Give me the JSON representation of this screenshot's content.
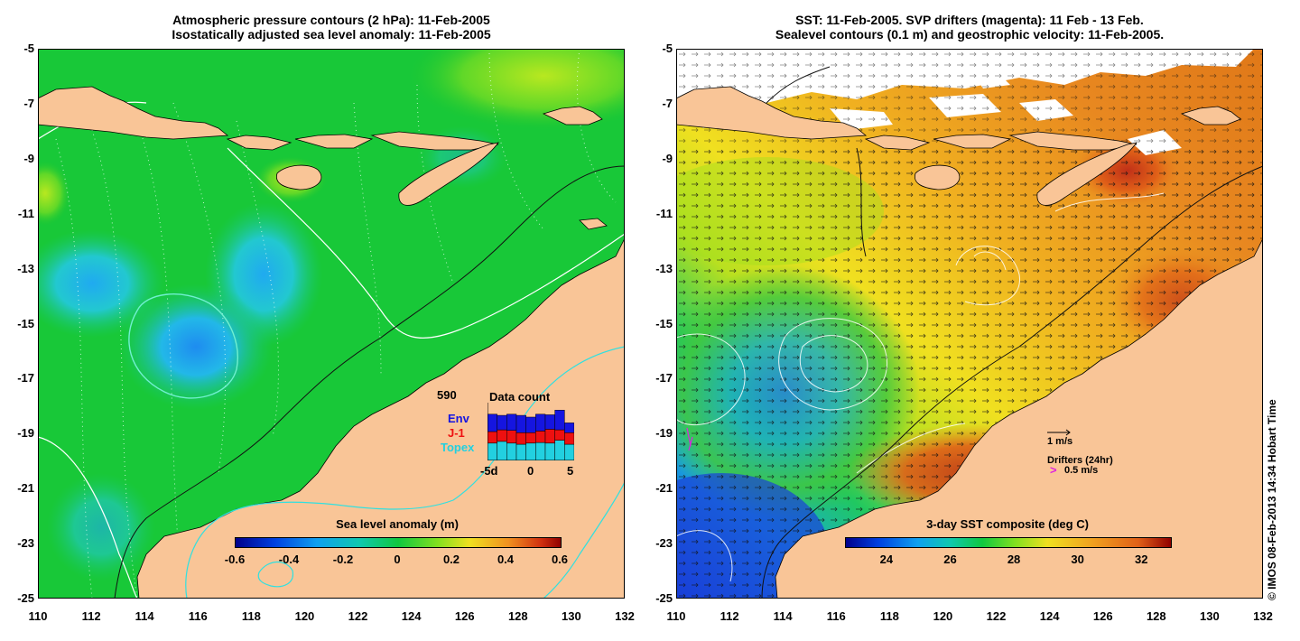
{
  "left_panel": {
    "title_line1": "Atmospheric pressure contours (2 hPa): 11-Feb-2005",
    "title_line2": "Isostatically adjusted sea level anomaly: 11-Feb-2005",
    "colorbar": {
      "title": "Sea level anomaly (m)",
      "ticks": [
        "-0.6",
        "-0.4",
        "-0.2",
        "0",
        "0.2",
        "0.4",
        "0.6"
      ]
    },
    "data_count": {
      "total": "590",
      "title": "Data count",
      "series": [
        {
          "name": "Env",
          "color": "#1515e0"
        },
        {
          "name": "J-1",
          "color": "#ee1010"
        },
        {
          "name": "Topex",
          "color": "#22d0e0"
        }
      ],
      "x_ticks": [
        "-5d",
        "0",
        "5"
      ],
      "bars": [
        {
          "topex": 0.3,
          "j1": 0.2,
          "env": 0.3
        },
        {
          "topex": 0.33,
          "j1": 0.2,
          "env": 0.25
        },
        {
          "topex": 0.3,
          "j1": 0.22,
          "env": 0.28
        },
        {
          "topex": 0.28,
          "j1": 0.2,
          "env": 0.3
        },
        {
          "topex": 0.3,
          "j1": 0.18,
          "env": 0.27
        },
        {
          "topex": 0.31,
          "j1": 0.2,
          "env": 0.29
        },
        {
          "topex": 0.3,
          "j1": 0.24,
          "env": 0.25
        },
        {
          "topex": 0.35,
          "j1": 0.18,
          "env": 0.34
        },
        {
          "topex": 0.28,
          "j1": 0.2,
          "env": 0.17
        }
      ]
    }
  },
  "right_panel": {
    "title_line1": "SST: 11-Feb-2005. SVP drifters (magenta): 11 Feb - 13 Feb.",
    "title_line2": "Sealevel contours (0.1 m) and geostrophic velocity: 11-Feb-2005.",
    "colorbar": {
      "title": "3-day SST composite (deg C)",
      "ticks": [
        "24",
        "26",
        "28",
        "30",
        "32"
      ]
    },
    "velocity_legend": {
      "scale": "1 m/s",
      "drifters": "Drifters (24hr)",
      "drifter_speed": "0.5 m/s",
      "drifter_symbol": ">"
    }
  },
  "axes": {
    "lat_ticks": [
      "-5",
      "-7",
      "-9",
      "-11",
      "-13",
      "-15",
      "-17",
      "-19",
      "-21",
      "-23",
      "-25"
    ],
    "lon_ticks": [
      "110",
      "112",
      "114",
      "116",
      "118",
      "120",
      "122",
      "124",
      "126",
      "128",
      "130",
      "132"
    ]
  },
  "credit": "© IMOS 08-Feb-2013 14:34 Hobart Time",
  "colors": {
    "land": "#f9c597",
    "ocean_sla": "#10c830",
    "sst_warm": "#f0a020",
    "drifter": "#e020e0",
    "contour_cyan": "#30e0e0"
  }
}
